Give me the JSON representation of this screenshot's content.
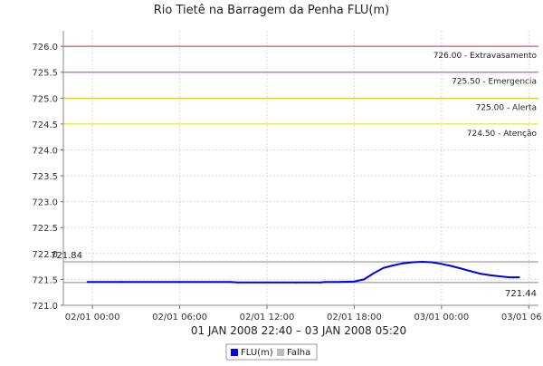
{
  "chart_data": {
    "type": "line",
    "title": "Rio Tietê na Barragem da Penha FLU(m)",
    "date_range_label": "01 JAN 2008 22:40 – 03 JAN 2008 05:20",
    "ylim": [
      721.0,
      726.3
    ],
    "yticks": [
      721.0,
      721.5,
      722.0,
      722.5,
      723.0,
      723.5,
      724.0,
      724.5,
      725.0,
      725.5,
      726.0
    ],
    "ytick_labels": [
      "721.0",
      "721.5",
      "722.0",
      "722.5",
      "723.0",
      "723.5",
      "724.0",
      "724.5",
      "725.0",
      "725.5",
      "726.0"
    ],
    "xlim": [
      "2008-01-01 22:00",
      "2008-01-03 06:40"
    ],
    "xticks": [
      "2008-01-02 00:00",
      "2008-01-02 06:00",
      "2008-01-02 12:00",
      "2008-01-02 18:00",
      "2008-01-03 00:00",
      "2008-01-03 06:00"
    ],
    "xtick_labels": [
      "02/01 00:00",
      "02/01 06:00",
      "02/01 12:00",
      "02/01 18:00",
      "03/01 00:00",
      "03/01 06:00"
    ],
    "grid": true,
    "thresholds": [
      {
        "value": 726.0,
        "label": "726.00 - Extravasamento",
        "color": "#cc3333"
      },
      {
        "value": 725.5,
        "label": "725.50 - Emergencia",
        "color": "#cc33cc"
      },
      {
        "value": 725.0,
        "label": "725.00 - Alerta",
        "color": "#cccc00"
      },
      {
        "value": 724.5,
        "label": "724.50 - Atenção",
        "color": "#e6e600"
      }
    ],
    "max_marker": {
      "value": 721.84,
      "label": "721.84",
      "color": "#888888"
    },
    "min_marker": {
      "value": 721.44,
      "label": "721.44",
      "color": "#888888"
    },
    "series": [
      {
        "name": "FLU(m)",
        "color": "#0000ee",
        "x": [
          "2008-01-01 23:40",
          "2008-01-02 02:00",
          "2008-01-02 06:00",
          "2008-01-02 09:30",
          "2008-01-02 10:00",
          "2008-01-02 14:00",
          "2008-01-02 15:40",
          "2008-01-02 16:00",
          "2008-01-02 17:00",
          "2008-01-02 18:00",
          "2008-01-02 18:40",
          "2008-01-02 19:20",
          "2008-01-02 20:00",
          "2008-01-02 20:40",
          "2008-01-02 21:20",
          "2008-01-02 22:00",
          "2008-01-02 22:40",
          "2008-01-02 23:20",
          "2008-01-03 00:00",
          "2008-01-03 00:40",
          "2008-01-03 01:20",
          "2008-01-03 02:00",
          "2008-01-03 02:40",
          "2008-01-03 03:20",
          "2008-01-03 04:00",
          "2008-01-03 04:40",
          "2008-01-03 05:20"
        ],
        "values": [
          721.45,
          721.45,
          721.45,
          721.45,
          721.44,
          721.44,
          721.44,
          721.45,
          721.45,
          721.46,
          721.5,
          721.62,
          721.72,
          721.77,
          721.81,
          721.83,
          721.84,
          721.83,
          721.8,
          721.76,
          721.71,
          721.66,
          721.61,
          721.58,
          721.56,
          721.54,
          721.54
        ]
      },
      {
        "name": "Falha",
        "color": "#bbbbbb",
        "values": []
      }
    ],
    "legend_position": "bottom-center"
  }
}
